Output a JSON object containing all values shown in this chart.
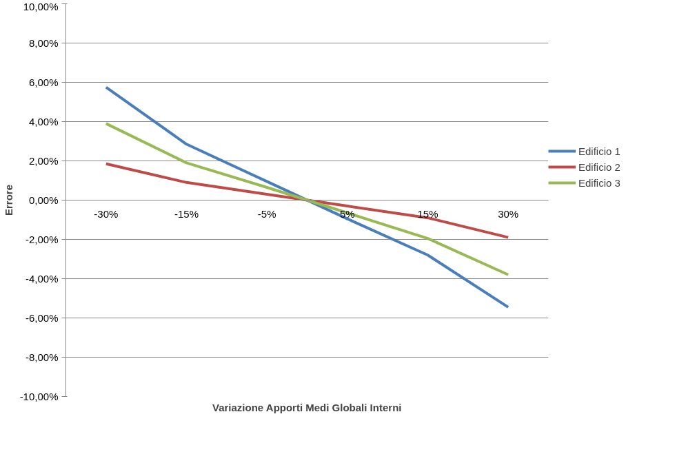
{
  "chart_data": {
    "type": "line",
    "xlabel": "Variazione Apporti Medi Globali Interni",
    "ylabel": "Errore",
    "categories": [
      "-30%",
      "-15%",
      "-5%",
      "5%",
      "15%",
      "30%"
    ],
    "series": [
      {
        "name": "Edificio 1",
        "color": "#4a7ebb",
        "values": [
          5.75,
          2.85,
          0.95,
          -0.95,
          -2.8,
          -5.45
        ]
      },
      {
        "name": "Edificio 2",
        "color": "#be4b48",
        "values": [
          1.85,
          0.9,
          0.3,
          -0.3,
          -0.9,
          -1.9
        ]
      },
      {
        "name": "Edificio 3",
        "color": "#98b954",
        "values": [
          3.9,
          1.9,
          0.65,
          -0.65,
          -1.95,
          -3.8
        ]
      }
    ],
    "ylim": [
      -10,
      10
    ],
    "yticks": [
      {
        "value": -10,
        "label": "-10,00%"
      },
      {
        "value": -8,
        "label": "-8,00%"
      },
      {
        "value": -6,
        "label": "-6,00%"
      },
      {
        "value": -4,
        "label": "-4,00%"
      },
      {
        "value": -2,
        "label": "-2,00%"
      },
      {
        "value": 0,
        "label": "0,00%"
      },
      {
        "value": 2,
        "label": "2,00%"
      },
      {
        "value": 4,
        "label": "4,00%"
      },
      {
        "value": 6,
        "label": "6,00%"
      },
      {
        "value": 8,
        "label": "8,00%"
      },
      {
        "value": 10,
        "label": "10,00%"
      }
    ],
    "grid": "y",
    "legend": "right",
    "marker": "none",
    "line_style": "solid"
  }
}
